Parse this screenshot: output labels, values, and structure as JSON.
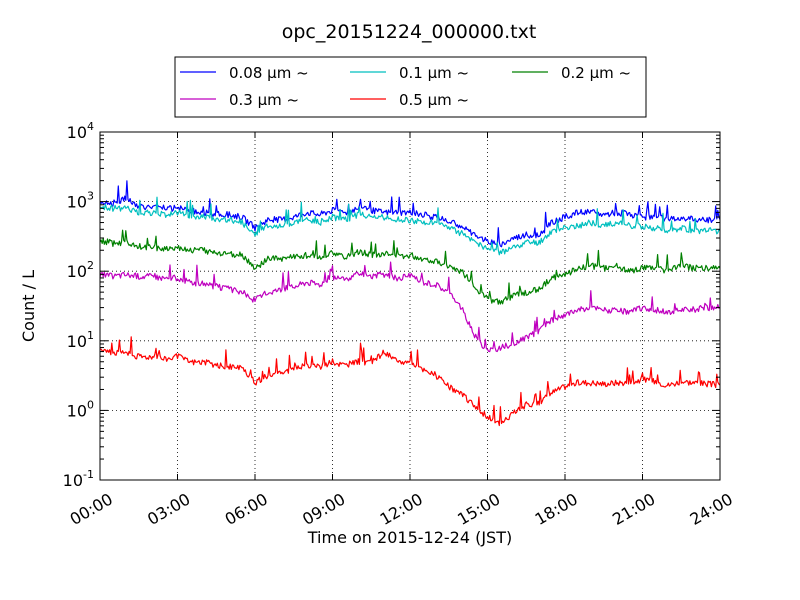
{
  "chart_data": {
    "type": "line",
    "title": "opc_20151224_000000.txt",
    "xlabel": "Time on 2015-12-24 (JST)",
    "ylabel": "Count / L",
    "y_scale": "log",
    "ylim": [
      0.1,
      10000
    ],
    "xlim": [
      "2015-12-24 00:00",
      "2015-12-25 00:00"
    ],
    "x_ticks": [
      "00:00",
      "03:00",
      "06:00",
      "09:00",
      "12:00",
      "15:00",
      "18:00",
      "21:00",
      "24:00"
    ],
    "y_ticks": [
      {
        "base": "10",
        "exp": "-1",
        "value": 0.1
      },
      {
        "base": "10",
        "exp": "0",
        "value": 1
      },
      {
        "base": "10",
        "exp": "1",
        "value": 10
      },
      {
        "base": "10",
        "exp": "2",
        "value": 100
      },
      {
        "base": "10",
        "exp": "3",
        "value": 1000
      },
      {
        "base": "10",
        "exp": "4",
        "value": 10000
      }
    ],
    "grid": true,
    "legend_position": "top-center",
    "x": [
      "00:00",
      "00:30",
      "01:00",
      "01:30",
      "02:00",
      "02:30",
      "03:00",
      "03:30",
      "04:00",
      "04:30",
      "05:00",
      "05:30",
      "06:00",
      "06:30",
      "07:00",
      "07:30",
      "08:00",
      "08:30",
      "09:00",
      "09:30",
      "10:00",
      "10:30",
      "11:00",
      "11:30",
      "12:00",
      "12:30",
      "13:00",
      "13:30",
      "14:00",
      "14:30",
      "15:00",
      "15:30",
      "16:00",
      "16:30",
      "17:00",
      "17:30",
      "18:00",
      "18:30",
      "19:00",
      "19:30",
      "20:00",
      "20:30",
      "21:00",
      "21:30",
      "22:00",
      "22:30",
      "23:00",
      "23:30",
      "24:00"
    ],
    "series": [
      {
        "name": "0.08 μm ~",
        "color": "#0000ff",
        "values": [
          1000,
          950,
          1100,
          850,
          850,
          800,
          800,
          750,
          700,
          650,
          650,
          600,
          420,
          550,
          550,
          600,
          700,
          650,
          750,
          700,
          800,
          750,
          700,
          700,
          700,
          650,
          600,
          520,
          450,
          330,
          270,
          240,
          300,
          330,
          330,
          500,
          600,
          700,
          700,
          650,
          700,
          650,
          600,
          600,
          550,
          600,
          550,
          550,
          550
        ]
      },
      {
        "name": "0.1 μm ~",
        "color": "#00bfbf",
        "values": [
          850,
          800,
          800,
          700,
          700,
          650,
          700,
          600,
          600,
          550,
          550,
          500,
          350,
          450,
          450,
          500,
          550,
          500,
          600,
          550,
          650,
          600,
          600,
          550,
          550,
          500,
          500,
          420,
          350,
          260,
          210,
          180,
          220,
          260,
          260,
          380,
          420,
          450,
          500,
          450,
          500,
          450,
          430,
          420,
          380,
          420,
          380,
          380,
          380
        ]
      },
      {
        "name": "0.2 μm ~",
        "color": "#008000",
        "values": [
          280,
          250,
          260,
          230,
          220,
          210,
          220,
          200,
          200,
          180,
          180,
          170,
          110,
          150,
          150,
          160,
          170,
          160,
          180,
          160,
          190,
          170,
          180,
          160,
          170,
          150,
          140,
          120,
          100,
          60,
          40,
          35,
          45,
          50,
          55,
          80,
          90,
          110,
          120,
          110,
          120,
          100,
          110,
          110,
          100,
          120,
          110,
          110,
          110
        ]
      },
      {
        "name": "0.3 μm ~",
        "color": "#bf00bf",
        "values": [
          90,
          85,
          90,
          85,
          85,
          80,
          80,
          70,
          65,
          60,
          55,
          50,
          38,
          50,
          55,
          60,
          70,
          65,
          80,
          75,
          90,
          85,
          90,
          80,
          85,
          70,
          65,
          50,
          30,
          12,
          7,
          8,
          9,
          11,
          14,
          20,
          24,
          28,
          30,
          28,
          27,
          26,
          30,
          28,
          25,
          28,
          28,
          30,
          30
        ]
      },
      {
        "name": "0.5 μm ~",
        "color": "#ff0000",
        "values": [
          7,
          7,
          6.5,
          6,
          6,
          5.5,
          6,
          5,
          5,
          4.5,
          4.2,
          4,
          2.5,
          3.2,
          3.5,
          4,
          4.5,
          4.2,
          5,
          4.5,
          5,
          4.8,
          7,
          5,
          5,
          3.8,
          3.2,
          2.2,
          1.7,
          1.2,
          0.8,
          0.65,
          0.9,
          1.2,
          1.3,
          1.8,
          2.2,
          2.5,
          2.5,
          2.4,
          2.5,
          2.5,
          2.8,
          2.6,
          2.3,
          2.6,
          2.5,
          2.4,
          2.3
        ]
      }
    ]
  }
}
